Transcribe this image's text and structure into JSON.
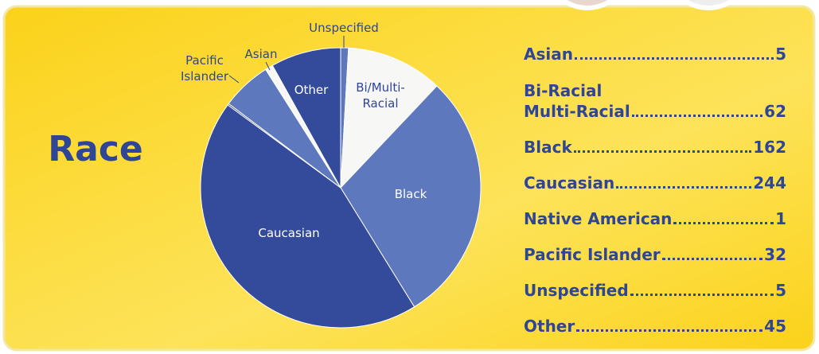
{
  "chart_data": {
    "type": "pie",
    "title": "Race",
    "categories": [
      "Unspecified",
      "Bi/Multi-\nRacial",
      "Black",
      "Caucasian",
      null,
      "Pacific\nIslander",
      "Asian",
      "Other"
    ],
    "values": [
      5,
      62,
      162,
      244,
      1,
      32,
      5,
      45
    ],
    "colors": [
      "#5e78bd",
      "#f7f7f5",
      "#5e78bd",
      "#344a9a",
      "#344a9a",
      "#5e78bd",
      "#f7f7f5",
      "#344a9a"
    ]
  },
  "list": [
    {
      "label": "Asian",
      "value": 5
    },
    {
      "label": "Bi-Racial\nMulti-Racial",
      "value": 62
    },
    {
      "label": "Black",
      "value": 162
    },
    {
      "label": "Caucasian",
      "value": 244
    },
    {
      "label": "Native American",
      "value": 1
    },
    {
      "label": "Pacific Islander",
      "value": 32
    },
    {
      "label": "Unspecified",
      "value": 5
    },
    {
      "label": "Other",
      "value": 45
    }
  ]
}
